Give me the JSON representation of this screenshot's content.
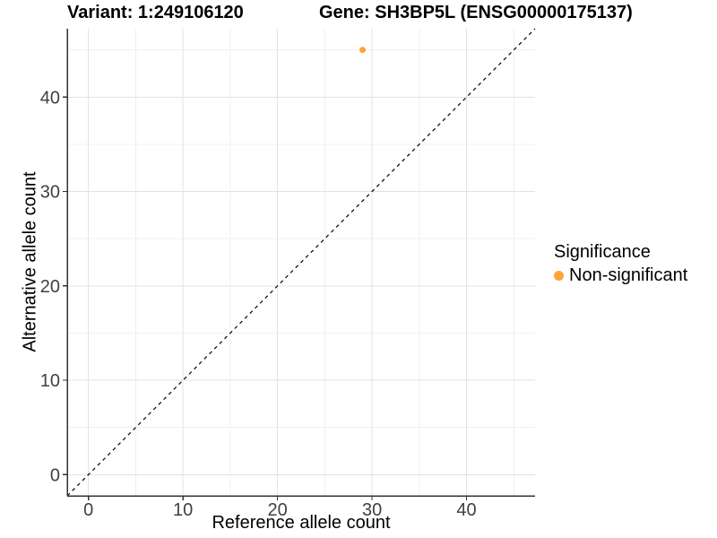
{
  "titles": {
    "variant": "Variant: 1:249106120",
    "gene": "Gene: SH3BP5L (ENSG00000175137)"
  },
  "chart_data": {
    "type": "scatter",
    "xlabel": "Reference allele count",
    "ylabel": "Alternative allele count",
    "xlim": [
      -2.25,
      47.25
    ],
    "ylim": [
      -2.25,
      47.25
    ],
    "major_breaks": [
      0,
      10,
      20,
      30,
      40
    ],
    "minor_breaks": [
      5,
      15,
      25,
      35,
      45
    ],
    "grid": true,
    "identity_line": {
      "style": "dashed",
      "color": "#000000",
      "from": -2.25,
      "to": 47.25
    },
    "series": [
      {
        "name": "Non-significant",
        "color": "#FFA33B",
        "points": [
          {
            "x": 29,
            "y": 45
          }
        ]
      }
    ],
    "legend": {
      "title": "Significance",
      "position": "right",
      "entries": [
        {
          "label": "Non-significant",
          "color": "#FFA33B"
        }
      ]
    }
  },
  "colors": {
    "background": "#FFFFFF",
    "axis_line": "#333333",
    "tick_text": "#404040",
    "grid_major": "#E3E3E3",
    "grid_minor": "#F0F0F0",
    "point": "#FFA33B"
  }
}
